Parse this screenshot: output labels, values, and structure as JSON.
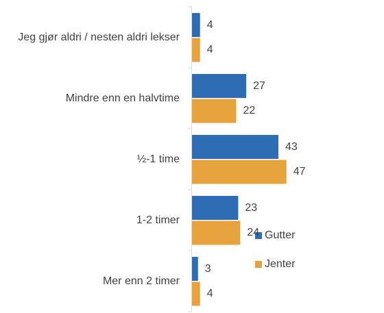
{
  "chart_data": {
    "type": "bar",
    "orientation": "horizontal",
    "categories": [
      "Jeg gjør aldri / nesten aldri lekser",
      "Mindre enn en halvtime",
      "½-1 time",
      "1-2 timer",
      "Mer enn 2 timer"
    ],
    "series": [
      {
        "name": "Gutter",
        "color": "#2e6db4",
        "values": [
          4,
          27,
          43,
          23,
          3
        ]
      },
      {
        "name": "Jenter",
        "color": "#e6a23c",
        "values": [
          4,
          22,
          47,
          24,
          4
        ]
      }
    ],
    "legend": "right"
  }
}
